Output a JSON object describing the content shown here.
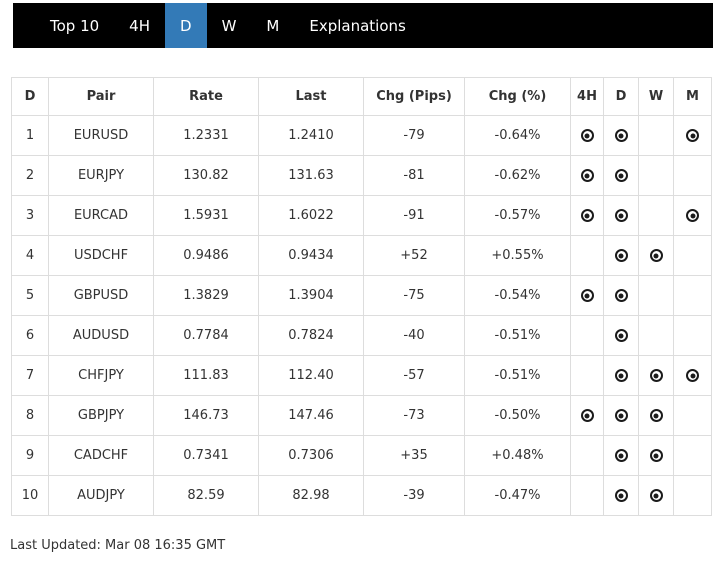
{
  "nav": {
    "items": [
      {
        "label": "Top 10",
        "active": false
      },
      {
        "label": "4H",
        "active": false
      },
      {
        "label": "D",
        "active": true
      },
      {
        "label": "W",
        "active": false
      },
      {
        "label": "M",
        "active": false
      },
      {
        "label": "Explanations",
        "active": false
      }
    ]
  },
  "table": {
    "columns": [
      "D",
      "Pair",
      "Rate",
      "Last",
      "Chg (Pips)",
      "Chg (%)",
      "4H",
      "D",
      "W",
      "M"
    ],
    "signal_icon": "target-dot-icon",
    "rows": [
      {
        "rank": "1",
        "pair": "EURUSD",
        "rate": "1.2331",
        "last": "1.2410",
        "chg_pips": "-79",
        "chg_pct": "-0.64%",
        "signals": {
          "4H": true,
          "D": true,
          "W": false,
          "M": true
        }
      },
      {
        "rank": "2",
        "pair": "EURJPY",
        "rate": "130.82",
        "last": "131.63",
        "chg_pips": "-81",
        "chg_pct": "-0.62%",
        "signals": {
          "4H": true,
          "D": true,
          "W": false,
          "M": false
        }
      },
      {
        "rank": "3",
        "pair": "EURCAD",
        "rate": "1.5931",
        "last": "1.6022",
        "chg_pips": "-91",
        "chg_pct": "-0.57%",
        "signals": {
          "4H": true,
          "D": true,
          "W": false,
          "M": true
        }
      },
      {
        "rank": "4",
        "pair": "USDCHF",
        "rate": "0.9486",
        "last": "0.9434",
        "chg_pips": "+52",
        "chg_pct": "+0.55%",
        "signals": {
          "4H": false,
          "D": true,
          "W": true,
          "M": false
        }
      },
      {
        "rank": "5",
        "pair": "GBPUSD",
        "rate": "1.3829",
        "last": "1.3904",
        "chg_pips": "-75",
        "chg_pct": "-0.54%",
        "signals": {
          "4H": true,
          "D": true,
          "W": false,
          "M": false
        }
      },
      {
        "rank": "6",
        "pair": "AUDUSD",
        "rate": "0.7784",
        "last": "0.7824",
        "chg_pips": "-40",
        "chg_pct": "-0.51%",
        "signals": {
          "4H": false,
          "D": true,
          "W": false,
          "M": false
        }
      },
      {
        "rank": "7",
        "pair": "CHFJPY",
        "rate": "111.83",
        "last": "112.40",
        "chg_pips": "-57",
        "chg_pct": "-0.51%",
        "signals": {
          "4H": false,
          "D": true,
          "W": true,
          "M": true
        }
      },
      {
        "rank": "8",
        "pair": "GBPJPY",
        "rate": "146.73",
        "last": "147.46",
        "chg_pips": "-73",
        "chg_pct": "-0.50%",
        "signals": {
          "4H": true,
          "D": true,
          "W": true,
          "M": false
        }
      },
      {
        "rank": "9",
        "pair": "CADCHF",
        "rate": "0.7341",
        "last": "0.7306",
        "chg_pips": "+35",
        "chg_pct": "+0.48%",
        "signals": {
          "4H": false,
          "D": true,
          "W": true,
          "M": false
        }
      },
      {
        "rank": "10",
        "pair": "AUDJPY",
        "rate": "82.59",
        "last": "82.98",
        "chg_pips": "-39",
        "chg_pct": "-0.47%",
        "signals": {
          "4H": false,
          "D": true,
          "W": true,
          "M": false
        }
      }
    ]
  },
  "footer": {
    "last_updated": "Last Updated: Mar 08 16:35 GMT"
  },
  "colors": {
    "nav_bg": "#000000",
    "active_tab_bg": "#337ab7",
    "table_border": "#dddddd",
    "text": "#333333",
    "icon": "#1b1b1b"
  }
}
